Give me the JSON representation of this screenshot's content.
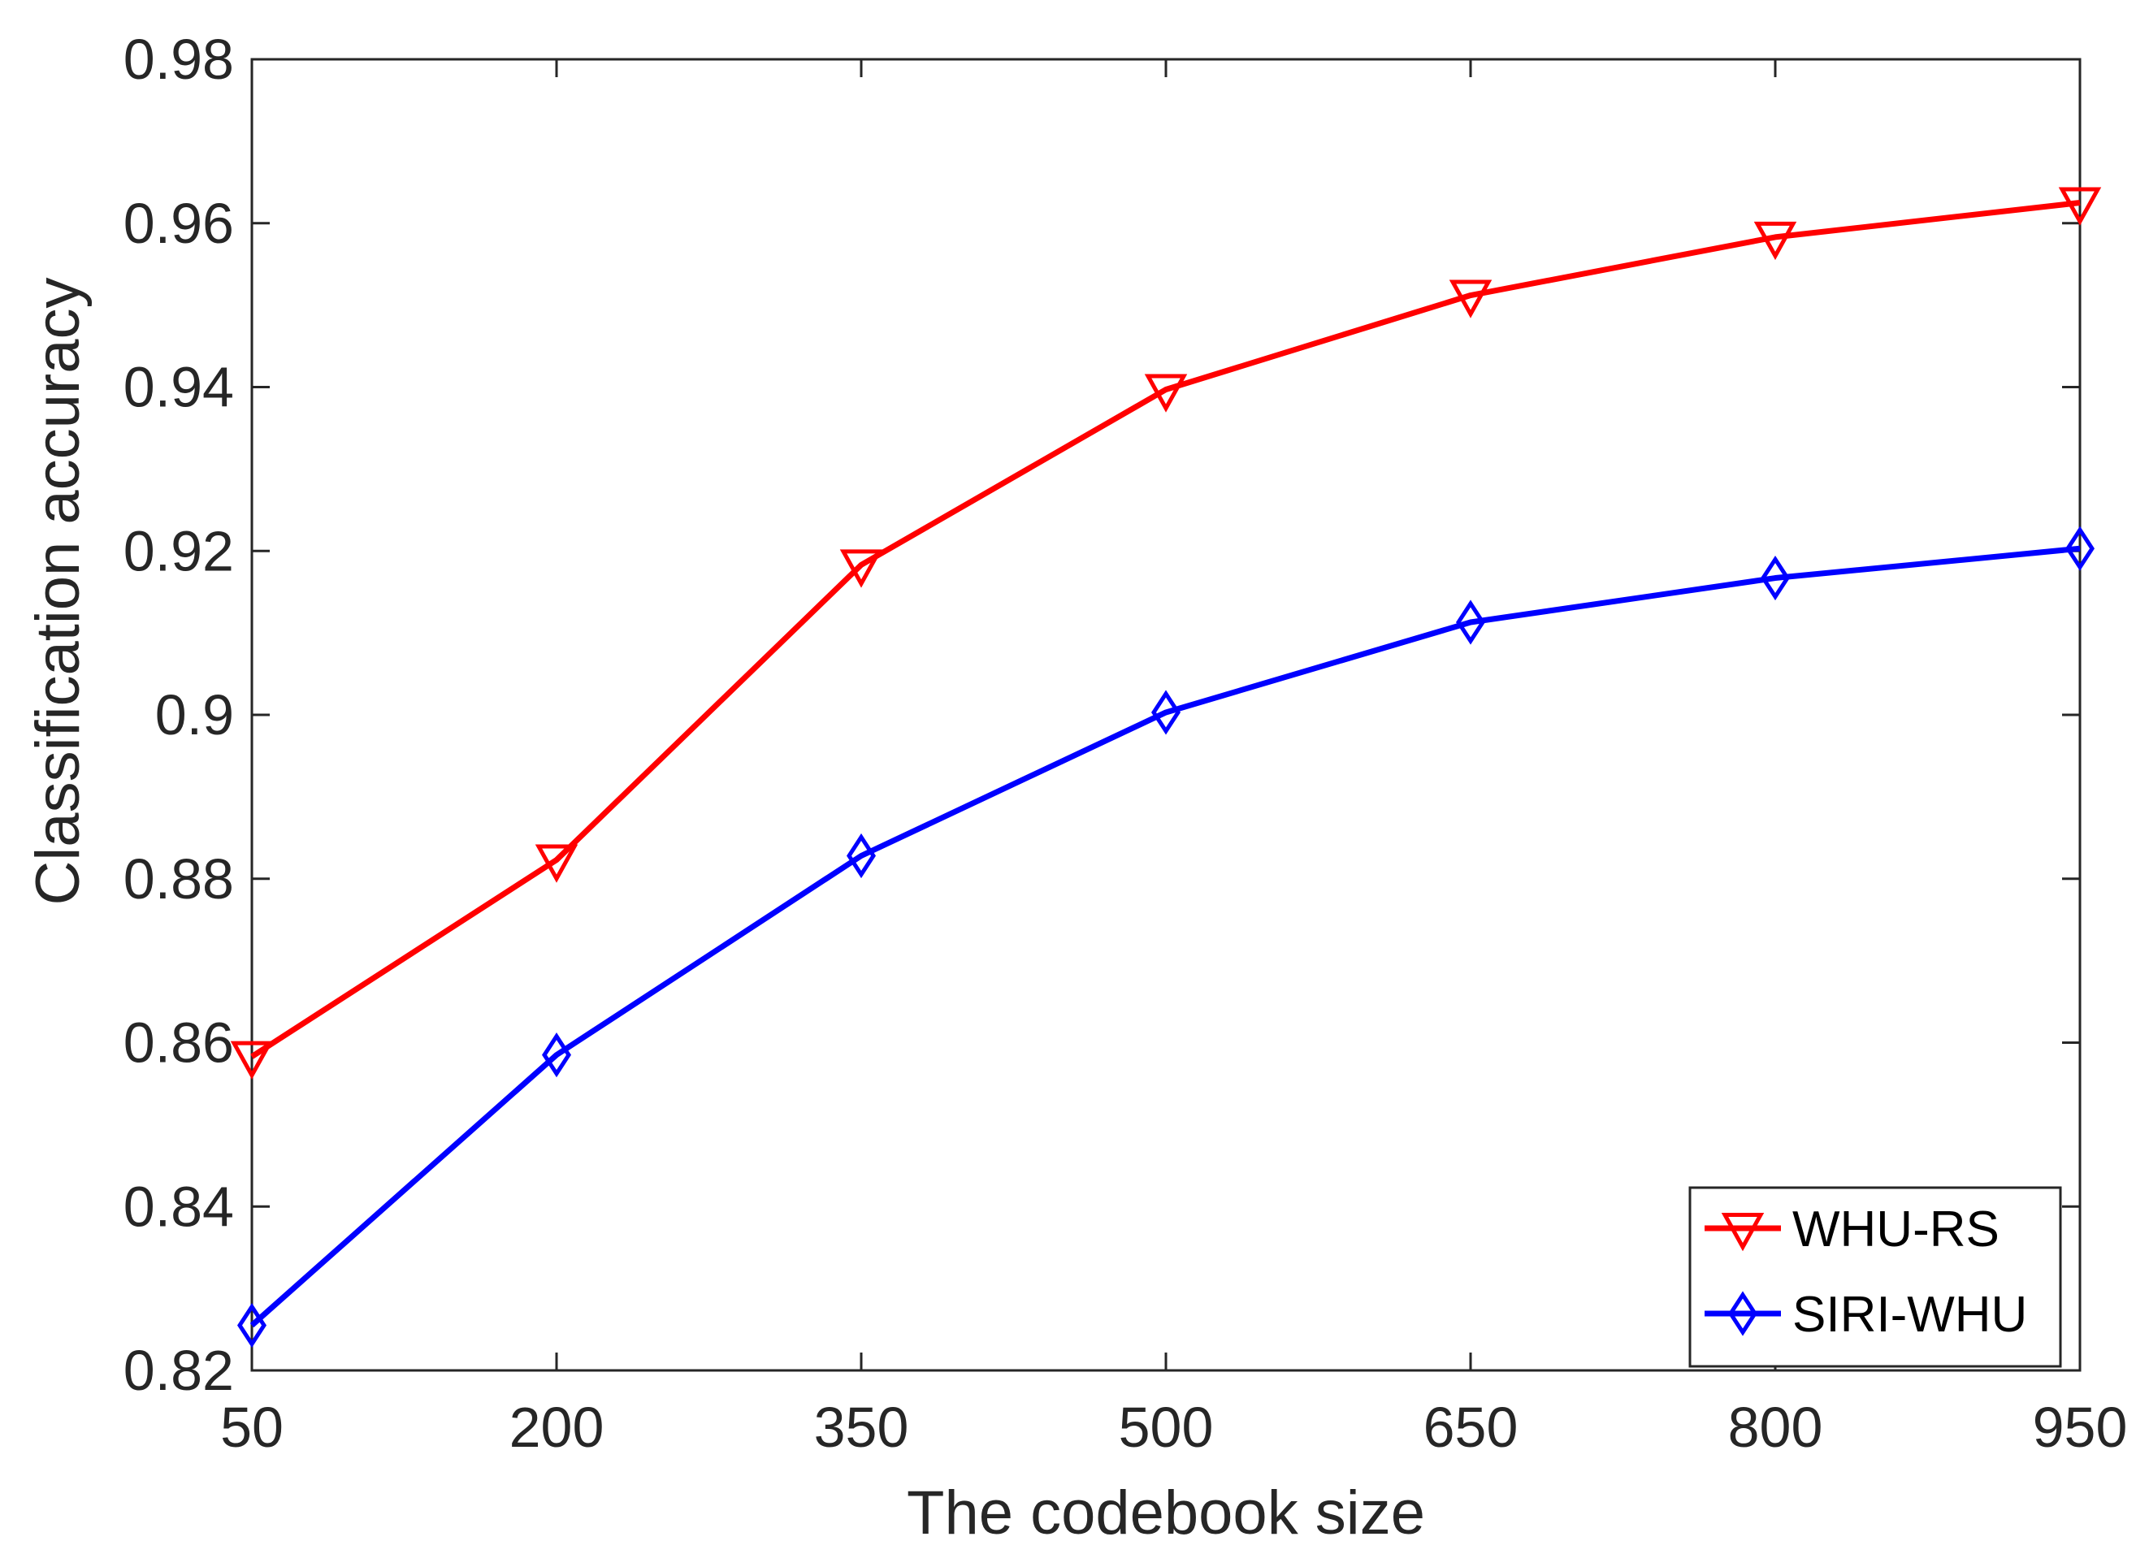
{
  "chart_data": {
    "type": "line",
    "title": "",
    "xlabel": "The codebook size",
    "ylabel": "Classification accuracy",
    "x": [
      50,
      200,
      350,
      500,
      650,
      800,
      950
    ],
    "x_ticks": [
      "50",
      "200",
      "350",
      "500",
      "650",
      "800",
      "950"
    ],
    "xlim": [
      50,
      950
    ],
    "ylim": [
      0.82,
      0.98
    ],
    "y_ticks": [
      0.82,
      0.84,
      0.86,
      0.88,
      0.9,
      0.92,
      0.94,
      0.96,
      0.98
    ],
    "y_tick_labels": [
      "0.82",
      "0.84",
      "0.86",
      "0.88",
      "0.9",
      "0.92",
      "0.94",
      "0.96",
      "0.98"
    ],
    "grid": false,
    "legend_position": "bottom-right",
    "series": [
      {
        "name": "WHU-RS",
        "color": "#ff0000",
        "marker": "triangle-down",
        "values": [
          0.8583,
          0.8823,
          0.9183,
          0.9397,
          0.9512,
          0.9583,
          0.9625
        ]
      },
      {
        "name": "SIRI-WHU",
        "color": "#0000ff",
        "marker": "diamond",
        "values": [
          0.8255,
          0.8585,
          0.8828,
          0.9003,
          0.9113,
          0.9167,
          0.9203
        ]
      }
    ]
  }
}
